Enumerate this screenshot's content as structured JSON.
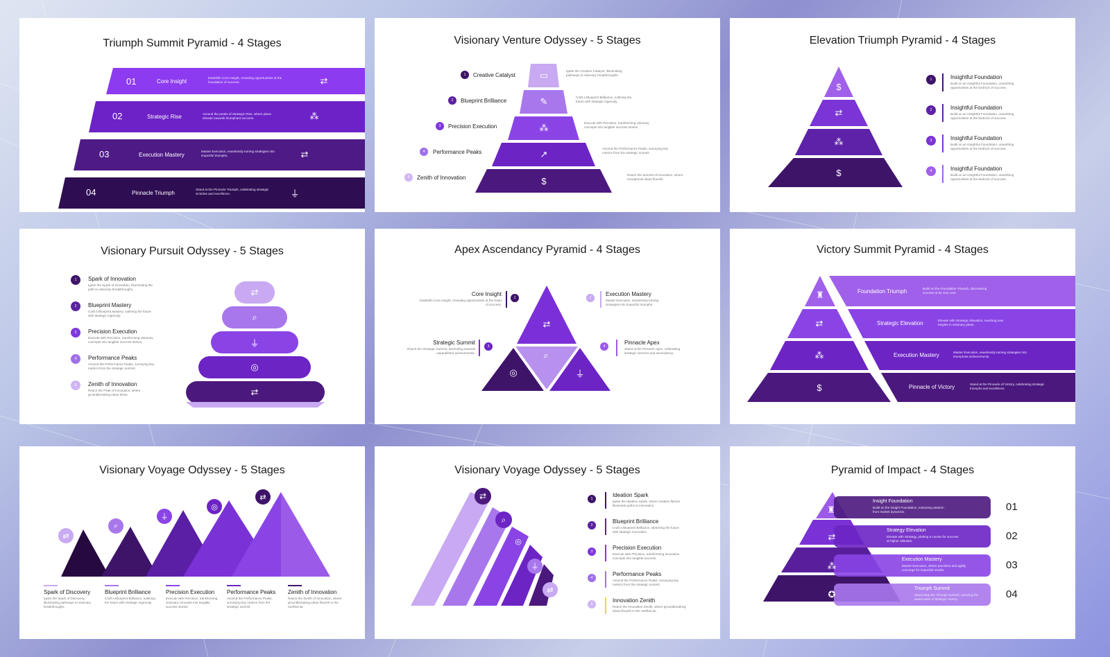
{
  "colors": {
    "c1": "#3e1469",
    "c2": "#581e9c",
    "c3": "#7a32d6",
    "c4": "#9c5ae8",
    "c5": "#c8a9f2",
    "accent": "#8d3bf0"
  },
  "icons": {
    "route": "⇄",
    "network": "⁂",
    "funnel": "⏚",
    "dollar": "$",
    "target": "◎",
    "search": "⌕",
    "chart": "↗",
    "shield": "♜"
  },
  "s1": {
    "title": "Triumph Summit Pyramid - 4 Stages",
    "rows": [
      {
        "num": "01",
        "label": "Core Insight",
        "desc": "Establish Core Insight, revealing opportunities at the foundation of success.",
        "icon": "route-icon"
      },
      {
        "num": "02",
        "label": "Strategic Rise",
        "desc": "Ascend the peaks of Strategic Rise, where plans elevate towards triumphant success.",
        "icon": "network-icon"
      },
      {
        "num": "03",
        "label": "Execution Mastery",
        "desc": "Master Execution, seamlessly turning strategies into impactful triumphs.",
        "icon": "route-icon"
      },
      {
        "num": "04",
        "label": "Pinnacle Triumph",
        "desc": "Stand at the Pinnacle Triumph, celebrating strategic victories and excellence.",
        "icon": "funnel-icon"
      }
    ]
  },
  "s2": {
    "title": "Visionary Venture Odyssey - 5 Stages",
    "rows": [
      {
        "num": "1",
        "label": "Creative Catalyst",
        "desc": "Ignite the Creative Catalyst, illuminating pathways to visionary breakthroughs."
      },
      {
        "num": "2",
        "label": "Blueprint Brilliance",
        "desc": "Craft a Blueprint Brilliance, outlining the future with strategic ingenuity."
      },
      {
        "num": "3",
        "label": "Precision Execution",
        "desc": "Execute with Precision, transforming visionary concepts into tangible success stories."
      },
      {
        "num": "4",
        "label": "Performance Peaks",
        "desc": "Ascend the Performance Peaks, surveying key metrics from the strategic summit."
      },
      {
        "num": "5",
        "label": "Zenith of Innovation",
        "desc": "Reach the Summit of Innovation, where exceptional ideas flourish."
      }
    ]
  },
  "s3": {
    "title": "Elevation Triumph Pyramid - 4 Stages",
    "rows": [
      {
        "num": "1",
        "label": "Insightful Foundation",
        "desc": "Build on an Insightful Foundation, unearthing opportunities at the bedrock of success."
      },
      {
        "num": "2",
        "label": "Insightful Foundation",
        "desc": "Build on an Insightful Foundation, unearthing opportunities at the bedrock of success."
      },
      {
        "num": "3",
        "label": "Insightful Foundation",
        "desc": "Build on an Insightful Foundation, unearthing opportunities at the bedrock of success."
      },
      {
        "num": "4",
        "label": "Insightful Foundation",
        "desc": "Build on an Insightful Foundation, unearthing opportunities at the bedrock of success."
      }
    ]
  },
  "s4": {
    "title": "Visionary Pursuit Odyssey - 5 Stages",
    "rows": [
      {
        "num": "1",
        "label": "Spark of Innovation",
        "desc": "Ignite the Spark of Innovation, illuminating the path to visionary breakthroughs."
      },
      {
        "num": "2",
        "label": "Blueprint Mastery",
        "desc": "Craft a Blueprint Mastery, outlining the future with strategic ingenuity."
      },
      {
        "num": "3",
        "label": "Precision Execution",
        "desc": "Execute with Precision, transforming visionary concepts into tangible success stories."
      },
      {
        "num": "4",
        "label": "Performance Peaks",
        "desc": "Ascend the Performance Peaks, surveying key metrics from the strategic summit."
      },
      {
        "num": "5",
        "label": "Zenith of Innovation",
        "desc": "Reach the Peak of Innovation, where groundbreaking ideas thrive."
      }
    ]
  },
  "s5": {
    "title": "Apex Ascendancy Pyramid - 4 Stages",
    "items": [
      {
        "num": "1",
        "label": "Core Insight",
        "desc": "Establish Core Insight, revealing opportunities at the heart of success."
      },
      {
        "num": "2",
        "label": "Execution Mastery",
        "desc": "Master Execution, seamlessly turning strategies into impactful triumphs."
      },
      {
        "num": "3",
        "label": "Strategic Summit",
        "desc": "Reach the Strategic Summit, ascending towards unparalleled achievements."
      },
      {
        "num": "4",
        "label": "Pinnacle Apex",
        "desc": "Stand at the Pinnacle Apex, celebrating strategic victories and ascendancy."
      }
    ]
  },
  "s6": {
    "title": "Victory Summit Pyramid - 4 Stages",
    "rows": [
      {
        "label": "Foundation Triumph",
        "desc": "Build on the Foundation Triumph, discovering success at its very core."
      },
      {
        "label": "Strategic Elevation",
        "desc": "Elevate with Strategic Elevation, reaching new heights in visionary plans."
      },
      {
        "label": "Execution Mastery",
        "desc": "Master Execution, seamlessly turning strategies into triumphant achievements."
      },
      {
        "label": "Pinnacle of Victory",
        "desc": "Stand at the Pinnacle of Victory, celebrating strategic triumphs and excellence."
      }
    ]
  },
  "s7": {
    "title": "Visionary Voyage Odyssey - 5 Stages",
    "items": [
      {
        "label": "Spark of Discovery",
        "desc": "Ignite the Spark of Discovery, illuminating pathways to visionary breakthroughs."
      },
      {
        "label": "Blueprint Brilliance",
        "desc": "Craft a Blueprint Brilliance, outlining the future with strategic ingenuity."
      },
      {
        "label": "Precision Execution",
        "desc": "Execute with Precision, transforming visionary concepts into tangible success stories."
      },
      {
        "label": "Performance Peaks",
        "desc": "Ascend the Performance Peaks, surveying key metrics from the strategic summit."
      },
      {
        "label": "Zenith of Innovation",
        "desc": "Reach the Zenith of Innovation, where groundbreaking ideas flourish in the rarefied air."
      }
    ]
  },
  "s8": {
    "title": "Visionary Voyage Odyssey - 5 Stages",
    "rows": [
      {
        "num": "1",
        "label": "Ideation Spark",
        "desc": "Ignite the Ideation Spark, where creative flames illuminate paths to innovation."
      },
      {
        "num": "2",
        "label": "Blueprint Brilliance",
        "desc": "Craft a Blueprint Brilliance, sketching the future with strategic innovation."
      },
      {
        "num": "3",
        "label": "Precision Execution",
        "desc": "Execute with Precision, transforming innovative concepts into tangible success."
      },
      {
        "num": "4",
        "label": "Performance Peaks",
        "desc": "Ascend the Performance Peaks, surveying key metrics from the strategic summit."
      },
      {
        "num": "5",
        "label": "Innovation Zenith",
        "desc": "Reach the Innovation Zenith, where groundbreaking ideas flourish in the rarefied air."
      }
    ]
  },
  "s9": {
    "title": "Pyramid of Impact - 4 Stages",
    "rows": [
      {
        "num": "01",
        "label": "Insight Foundation",
        "desc": "Build on the Insight Foundation, extracting wisdom from market dynamics."
      },
      {
        "num": "02",
        "label": "Strategy Elevation",
        "desc": "Elevate with Strategy, plotting a course for success at higher altitudes."
      },
      {
        "num": "03",
        "label": "Execution Mastery",
        "desc": "Master Execution, where precision and agility converge for impactful results."
      },
      {
        "num": "04",
        "label": "Triumph Summit",
        "desc": "Stand atop the Triumph Summit, savoring the sweet taste of strategic victory."
      }
    ]
  }
}
